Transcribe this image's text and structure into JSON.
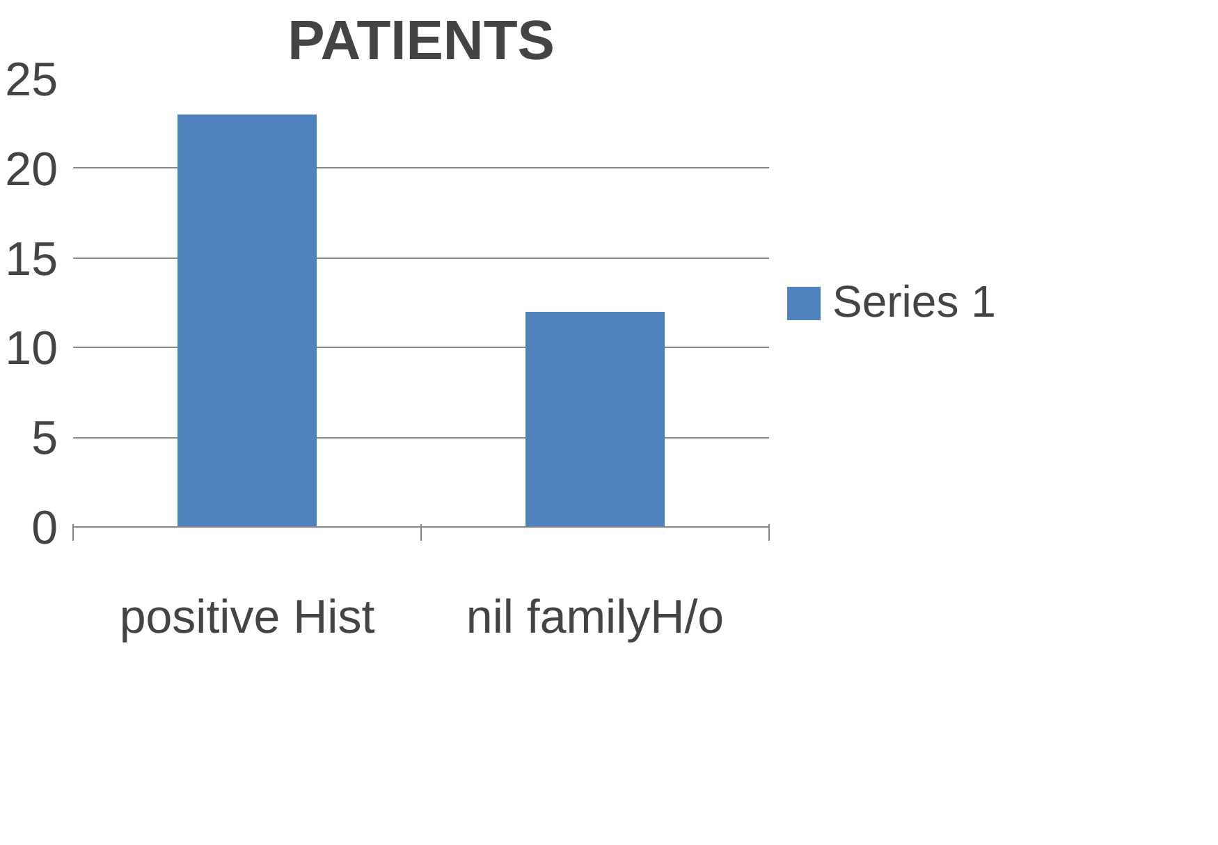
{
  "chart_data": {
    "type": "bar",
    "title": "PATIENTS",
    "categories": [
      "positive Hist",
      "nil familyH/o"
    ],
    "series": [
      {
        "name": "Series 1",
        "color": "#4f81bd",
        "values": [
          23,
          12
        ]
      }
    ],
    "ylim": [
      0,
      25
    ],
    "yticks": [
      0,
      5,
      10,
      15,
      20,
      25
    ],
    "grid": "y",
    "legend": "right"
  }
}
